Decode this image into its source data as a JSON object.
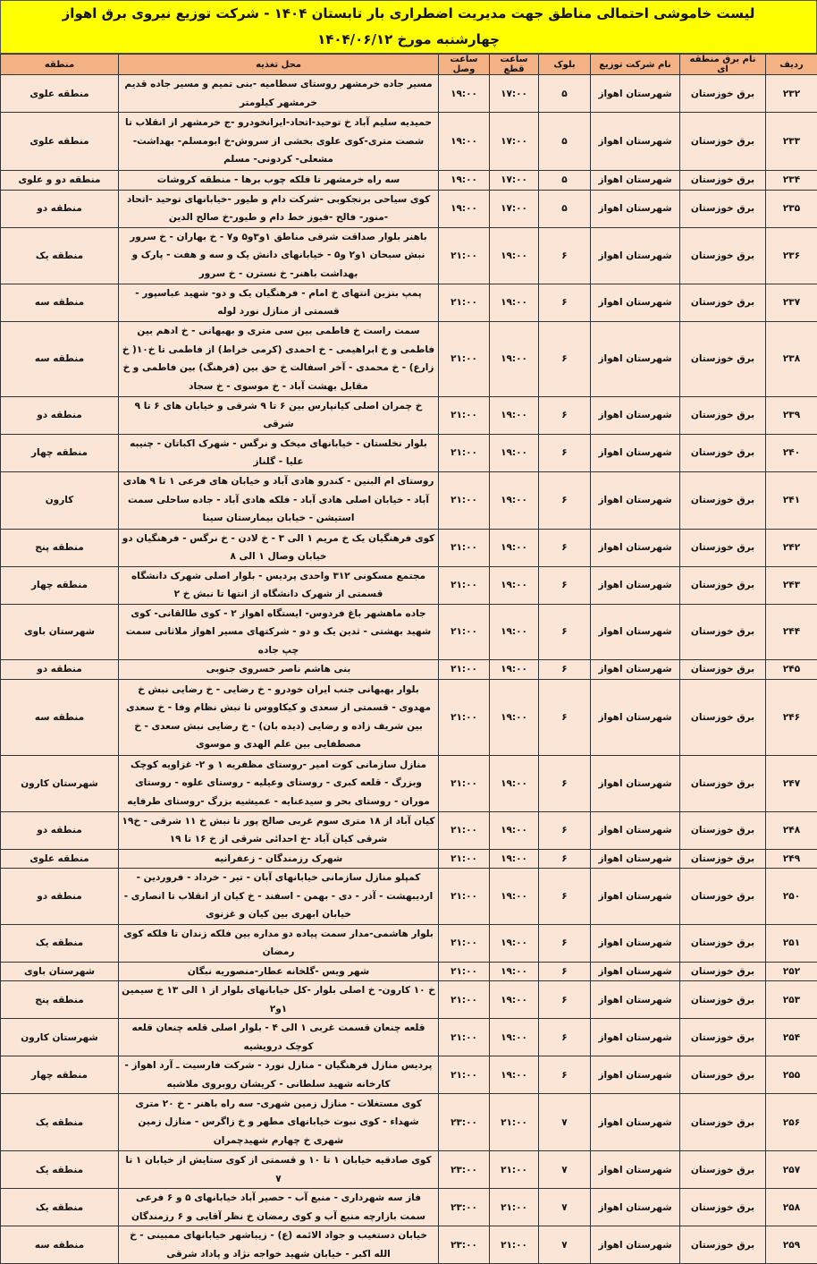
{
  "title": {
    "line1": "لیست خاموشی احتمالی مناطق جهت مدیریت اضطراری بار تابستان ۱۴۰۴ - شرکت توزیع نیروی برق اهواز",
    "line2": "چهارشنبه مورخ ۱۴۰۴/۰۶/۱۲"
  },
  "colors": {
    "title_bg": "#ffff00",
    "header_bg": "#f4b183",
    "row_bg": "#fbe5d6"
  },
  "columns": [
    "ردیف",
    "نام برق منطقه ای",
    "نام شرکت توزیع",
    "بلوک",
    "ساعت قطع",
    "ساعت وصل",
    "محل تغذیه",
    "منطقه"
  ],
  "rows": [
    {
      "id": "۲۳۲",
      "regional": "برق خوزستان",
      "company": "شهرستان اهواز",
      "block": "۵",
      "cut": "۱۷:۰۰",
      "connect": "۱۹:۰۰",
      "feed": "مسیر جاده خرمشهر روستای سطامیه -بنی تمیم و مسیر جاده قدیم خرمشهر کیلومتر",
      "region": "منطقه علوی"
    },
    {
      "id": "۲۳۳",
      "regional": "برق خوزستان",
      "company": "شهرستان اهواز",
      "block": "۵",
      "cut": "۱۷:۰۰",
      "connect": "۱۹:۰۰",
      "feed": "حمیدیه سلیم آباد خ توحید-اتحاد-ایرانخودرو -ج خرمشهر از انقلاب تا شصت متری-کوی علوی بخشی از سروش-خ ابومسلم- بهداشت- مشعلی- کردونی- مسلم",
      "region": "منطقه علوی"
    },
    {
      "id": "۲۳۴",
      "regional": "برق خوزستان",
      "company": "شهرستان اهواز",
      "block": "۵",
      "cut": "۱۷:۰۰",
      "connect": "۱۹:۰۰",
      "feed": "سه راه خرمشهر تا فلکه چوب برها - منطقه کروشات",
      "region": "منطقه دو و علوی"
    },
    {
      "id": "۲۳۵",
      "regional": "برق خوزستان",
      "company": "شهرستان اهواز",
      "block": "۵",
      "cut": "۱۷:۰۰",
      "connect": "۱۹:۰۰",
      "feed": "کوی سیاحی برنجکوبی -شرکت دام و طیور -خیابانهای توحید -اتحاد -منور- فالح -فیوز خط دام و طیور-خ صالح الدین",
      "region": "منطقه دو"
    },
    {
      "id": "۲۳۶",
      "regional": "برق خوزستان",
      "company": "شهرستان اهواز",
      "block": "۶",
      "cut": "۱۹:۰۰",
      "connect": "۲۱:۰۰",
      "feed": "باهنر بلوار صداقت شرقی مناطق ۱و۳و۵ و۷ - خ بهاران - خ سرور نبش سبحان ۱و۲ و۵ - خیابانهای دانش یک و سه و هفت - پارک و بهداشت باهنر- خ نسترن - خ سرور",
      "region": "منطقه یک"
    },
    {
      "id": "۲۳۷",
      "regional": "برق خوزستان",
      "company": "شهرستان اهواز",
      "block": "۶",
      "cut": "۱۹:۰۰",
      "connect": "۲۱:۰۰",
      "feed": "پمپ بنزین انتهای خ امام - فرهنگیان یک و دو- شهید عباسپور - قسمتی از منازل نورد لوله",
      "region": "منطقه سه"
    },
    {
      "id": "۲۳۸",
      "regional": "برق خوزستان",
      "company": "شهرستان اهواز",
      "block": "۶",
      "cut": "۱۹:۰۰",
      "connect": "۲۱:۰۰",
      "feed": "سمت راست خ فاطمی بین سی متری و بهبهانی - خ ادهم بین فاطمی و خ ابراهیمی - خ احمدی (کرمی خراط) از فاطمی تا خ۱۰( خ زارع) - خ محمدی - آخر اسفالت خ حق بین (فرهنگ) بین فاطمی و خ مقابل بهشت آباد - خ موسوی - خ سجاد",
      "region": "منطقه سه"
    },
    {
      "id": "۲۳۹",
      "regional": "برق خوزستان",
      "company": "شهرستان اهواز",
      "block": "۶",
      "cut": "۱۹:۰۰",
      "connect": "۲۱:۰۰",
      "feed": "خ چمران اصلی کیانپارس بین ۶ تا ۹ شرقی و خیابان های ۶ تا ۹ شرقی",
      "region": "منطقه دو"
    },
    {
      "id": "۲۴۰",
      "regional": "برق خوزستان",
      "company": "شهرستان اهواز",
      "block": "۶",
      "cut": "۱۹:۰۰",
      "connect": "۲۱:۰۰",
      "feed": "بلوار نخلستان - خیابانهای میخک و نرگس - شهرک اکباتان - چنیبه علیا - گلناز",
      "region": "منطقه چهار"
    },
    {
      "id": "۲۴۱",
      "regional": "برق خوزستان",
      "company": "شهرستان اهواز",
      "block": "۶",
      "cut": "۱۹:۰۰",
      "connect": "۲۱:۰۰",
      "feed": "روستای ام البنین - کندرو هادی آباد و خیابان های فرعی ۱ تا ۹ هادی آباد - خیابان اصلی هادی آباد - فلکه هادی آباد - جاده ساحلی سمت استیشن - خیابان بیمارستان سینا",
      "region": "کارون"
    },
    {
      "id": "۲۴۲",
      "regional": "برق خوزستان",
      "company": "شهرستان اهواز",
      "block": "۶",
      "cut": "۱۹:۰۰",
      "connect": "۲۱:۰۰",
      "feed": "کوی فرهنگیان یک خ مریم ۱ الی ۳ - خ لادن - خ نرگس - فرهنگیان دو خیابان وصال ۱ الی ۸",
      "region": "منطقه پنج"
    },
    {
      "id": "۲۴۳",
      "regional": "برق خوزستان",
      "company": "شهرستان اهواز",
      "block": "۶",
      "cut": "۱۹:۰۰",
      "connect": "۲۱:۰۰",
      "feed": "مجتمع مسکونی ۳۱۲ واحدی پردیس - بلوار اصلی شهرک دانشگاه قسمتی از شهرک دانشگاه از انتها تا نبش خ ۲",
      "region": "منطقه چهار"
    },
    {
      "id": "۲۴۴",
      "regional": "برق خوزستان",
      "company": "شهرستان اهواز",
      "block": "۶",
      "cut": "۱۹:۰۰",
      "connect": "۲۱:۰۰",
      "feed": "جاده ماهشهر باغ فردوس- ایستگاه اهواز ۲ - کوی طالقانی- کوی شهید بهشتی - ثدین یک و دو - شرکتهای مسیر اهواز ملاثانی سمت چپ جاده",
      "region": "شهرستان باوی"
    },
    {
      "id": "۲۴۵",
      "regional": "برق خوزستان",
      "company": "شهرستان اهواز",
      "block": "۶",
      "cut": "۱۹:۰۰",
      "connect": "۲۱:۰۰",
      "feed": "بنی هاشم ناصر خسروی جنوبی",
      "region": "منطقه دو"
    },
    {
      "id": "۲۴۶",
      "regional": "برق خوزستان",
      "company": "شهرستان اهواز",
      "block": "۶",
      "cut": "۱۹:۰۰",
      "connect": "۲۱:۰۰",
      "feed": "بلوار بهبهانی جنب ایران خودرو - خ رضایی - خ رضایی نبش خ مهدوی - قسمتی از سعدی و کیکاووس تا نبش نظام وفا - خ سعدی بین شریف زاده و رضایی (دیده بان) - خ رضایی نبش سعدی - خ مصطفایی بین علم الهدی و موسوی",
      "region": "منطقه سه"
    },
    {
      "id": "۲۴۷",
      "regional": "برق خوزستان",
      "company": "شهرستان اهواز",
      "block": "۶",
      "cut": "۱۹:۰۰",
      "connect": "۲۱:۰۰",
      "feed": "منازل سازمانی کوت امیر -روستای مظفریه ۱ و ۲- غزاویه کوچک وبزرگ - قلعه کبری - روستای وعیلیه - روستای علوه - روستای موران - روستای بحر و سیدعنایه - عمیشیه بزرگ -روستای طرفایه",
      "region": "شهرستان کارون"
    },
    {
      "id": "۲۴۸",
      "regional": "برق خوزستان",
      "company": "شهرستان اهواز",
      "block": "۶",
      "cut": "۱۹:۰۰",
      "connect": "۲۱:۰۰",
      "feed": "کیان آباد از ۱۸ متری سوم غربی صالح پور تا نبش خ ۱۱ شرقی - خ۱۹ شرقی کیان آباد -خ احدائی شرقی از خ ۱۶ تا ۱۹",
      "region": "منطقه دو"
    },
    {
      "id": "۲۴۹",
      "regional": "برق خوزستان",
      "company": "شهرستان اهواز",
      "block": "۶",
      "cut": "۱۹:۰۰",
      "connect": "۲۱:۰۰",
      "feed": "شهرک رزمندگان - زعفرانیه",
      "region": "منطقه علوی"
    },
    {
      "id": "۲۵۰",
      "regional": "برق خوزستان",
      "company": "شهرستان اهواز",
      "block": "۶",
      "cut": "۱۹:۰۰",
      "connect": "۲۱:۰۰",
      "feed": "کمپلو منازل سازمانی خیابانهای آبان - تیر - خرداد - فروردین - اردیبهشت - آذر - دی - بهمن - اسفند - خ کیان از انقلاب تا انصاری - خیابان ابهری بین کیان و غزنوی",
      "region": "منطقه دو"
    },
    {
      "id": "۲۵۱",
      "regional": "برق خوزستان",
      "company": "شهرستان اهواز",
      "block": "۶",
      "cut": "۱۹:۰۰",
      "connect": "۲۱:۰۰",
      "feed": "بلوار هاشمی-مدار سمت پیاده دو مداره بین فلکه زندان تا فلکه کوی رمضان",
      "region": "منطقه یک"
    },
    {
      "id": "۲۵۲",
      "regional": "برق خوزستان",
      "company": "شهرستان اهواز",
      "block": "۶",
      "cut": "۱۹:۰۰",
      "connect": "۲۱:۰۰",
      "feed": "شهر ویس -گلخانه عطار-منصوریه نبگان",
      "region": "شهرستان باوی"
    },
    {
      "id": "۲۵۳",
      "regional": "برق خوزستان",
      "company": "شهرستان اهواز",
      "block": "۶",
      "cut": "۱۹:۰۰",
      "connect": "۲۱:۰۰",
      "feed": "خ ۱۰ کارون- خ اصلی بلوار -کل خیابانهای بلوار از ۱ الی ۱۳ خ سیمین ۱و۲",
      "region": "منطقه پنج"
    },
    {
      "id": "۲۵۴",
      "regional": "برق خوزستان",
      "company": "شهرستان اهواز",
      "block": "۶",
      "cut": "۱۹:۰۰",
      "connect": "۲۱:۰۰",
      "feed": "قلعه چنعان قسمت غربی ۱ الی ۴ - بلوار اصلی قلعه چنعان قلعه کوچک درویشیه",
      "region": "شهرستان کارون"
    },
    {
      "id": "۲۵۵",
      "regional": "برق خوزستان",
      "company": "شهرستان اهواز",
      "block": "۶",
      "cut": "۱۹:۰۰",
      "connect": "۲۱:۰۰",
      "feed": "پردیس منازل فرهنگیان - منازل نورد - شرکت فارسیت ـ آرد اهواز - کارخانه شهید سلطانی - کریشان روبروی ملاشیه",
      "region": "منطقه چهار"
    },
    {
      "id": "۲۵۶",
      "regional": "برق خوزستان",
      "company": "شهرستان اهواز",
      "block": "۷",
      "cut": "۲۱:۰۰",
      "connect": "۲۳:۰۰",
      "feed": "کوی مستغلات - منازل زمین شهری- سه راه باهنر - خ ۲۰ متری شهداء - کوی نبوت خیابانهای مطهر و خ زاگرس - منازل زمین شهری خ چهارم شهیدچمران",
      "region": "منطقه یک"
    },
    {
      "id": "۲۵۷",
      "regional": "برق خوزستان",
      "company": "شهرستان اهواز",
      "block": "۷",
      "cut": "۲۱:۰۰",
      "connect": "۲۳:۰۰",
      "feed": "کوی صادقیه خیابان ۱ تا ۱۰ و قسمتی از کوی ستایش از خیابان ۱ تا ۷",
      "region": "منطقه یک"
    },
    {
      "id": "۲۵۸",
      "regional": "برق خوزستان",
      "company": "شهرستان اهواز",
      "block": "۷",
      "cut": "۲۱:۰۰",
      "connect": "۲۳:۰۰",
      "feed": "فاز سه شهرداری - منبع آب - حصیر آباد خیابانهای ۵ و ۶ فرعی سمت بازارچه منبع آب و کوی رمضان خ نظر آقایی و ۶ رزمندگان",
      "region": "منطقه یک"
    },
    {
      "id": "۲۵۹",
      "regional": "برق خوزستان",
      "company": "شهرستان اهواز",
      "block": "۷",
      "cut": "۲۱:۰۰",
      "connect": "۲۳:۰۰",
      "feed": "خیابان دستغیب و جواد الائمه (ع) - زیباشهر خیابانهای ممبینی - خ الله اکبر - خیابان شهید خواجه نژاد و پاداد شرقی",
      "region": "منطقه سه"
    }
  ]
}
